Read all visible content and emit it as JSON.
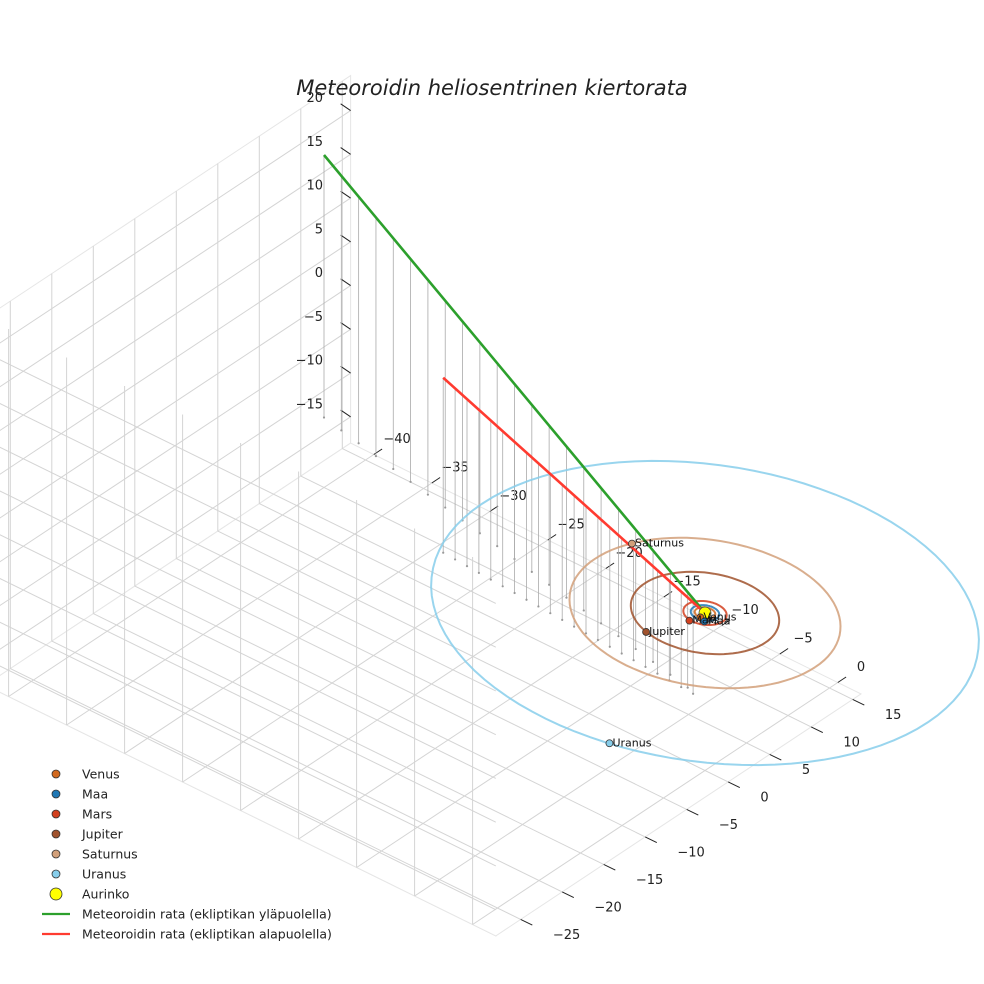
{
  "chart_data": {
    "type": "3d-line",
    "title": "Meteoroidin heliosentrinen kiertorata",
    "xlabel": "",
    "ylabel": "",
    "zlabel": "",
    "x_ticks": [
      "−40",
      "−35",
      "−30",
      "−25",
      "−20",
      "−15",
      "−10",
      "−5",
      "0"
    ],
    "y_ticks": [
      "−25",
      "−20",
      "−15",
      "−10",
      "−5",
      "0",
      "5",
      "10",
      "15"
    ],
    "z_ticks": [
      "−15",
      "−10",
      "−5",
      "0",
      "5",
      "10",
      "15",
      "20"
    ],
    "xlim": [
      -42,
      2
    ],
    "ylim": [
      -28,
      16
    ],
    "zlim": [
      -18,
      24
    ],
    "grid": true,
    "legend_position": "bottom-left",
    "planets": [
      {
        "name": "Venus",
        "color": "#d2691e",
        "orbit_radius": 0.72,
        "position": [
          0.1,
          -0.7,
          0
        ]
      },
      {
        "name": "Maa",
        "color": "#1f77b4",
        "orbit_radius": 1.0,
        "position": [
          0.6,
          -0.9,
          0
        ]
      },
      {
        "name": "Mars",
        "color": "#d2401e",
        "orbit_radius": 1.52,
        "position": [
          -0.2,
          -1.6,
          0
        ]
      },
      {
        "name": "Jupiter",
        "color": "#a0522d",
        "orbit_radius": 5.2,
        "position": [
          -1.5,
          -5.0,
          0
        ]
      },
      {
        "name": "Saturnus",
        "color": "#d2a07a",
        "orbit_radius": 9.5,
        "position": [
          -8.8,
          3.5,
          0
        ]
      },
      {
        "name": "Uranus",
        "color": "#87ceeb",
        "orbit_radius": 19.2,
        "position": [
          5.0,
          -18.5,
          0
        ]
      }
    ],
    "sun": {
      "name": "Aurinko",
      "color": "#ffff00",
      "position": [
        0,
        0,
        0
      ]
    },
    "series": [
      {
        "name": "Meteoroidin rata (ekliptikan yläpuolella)",
        "color": "#2ca02c",
        "start": [
          -40,
          10,
          20
        ],
        "end": [
          0,
          0,
          0
        ]
      },
      {
        "name": "Meteoroidin rata (ekliptikan alapuolella)",
        "color": "#ff3b30",
        "start": [
          -24,
          2,
          10
        ],
        "end": [
          0,
          0,
          0
        ]
      }
    ]
  }
}
